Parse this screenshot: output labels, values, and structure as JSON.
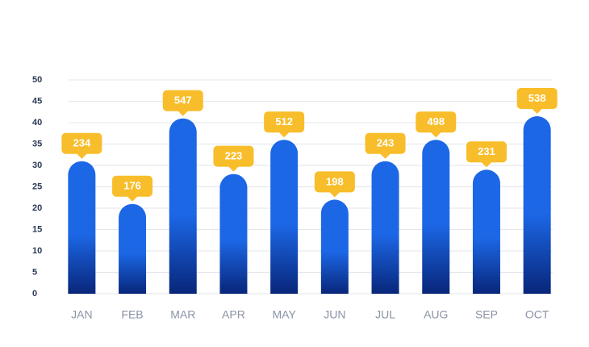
{
  "chart_data": {
    "type": "bar",
    "categories": [
      "JAN",
      "FEB",
      "MAR",
      "APR",
      "MAY",
      "JUN",
      "JUL",
      "AUG",
      "SEP",
      "OCT"
    ],
    "values": [
      31,
      21,
      41,
      28,
      36,
      22,
      31,
      36,
      29,
      41.5
    ],
    "labels": [
      234,
      176,
      547,
      223,
      512,
      198,
      243,
      498,
      231,
      538
    ],
    "color": "#1c67e6",
    "label_color": "#f8bd2a",
    "ylim": [
      0,
      50
    ],
    "yticks": [
      0,
      5,
      10,
      15,
      20,
      25,
      30,
      35,
      40,
      45,
      50
    ],
    "grid": true
  }
}
